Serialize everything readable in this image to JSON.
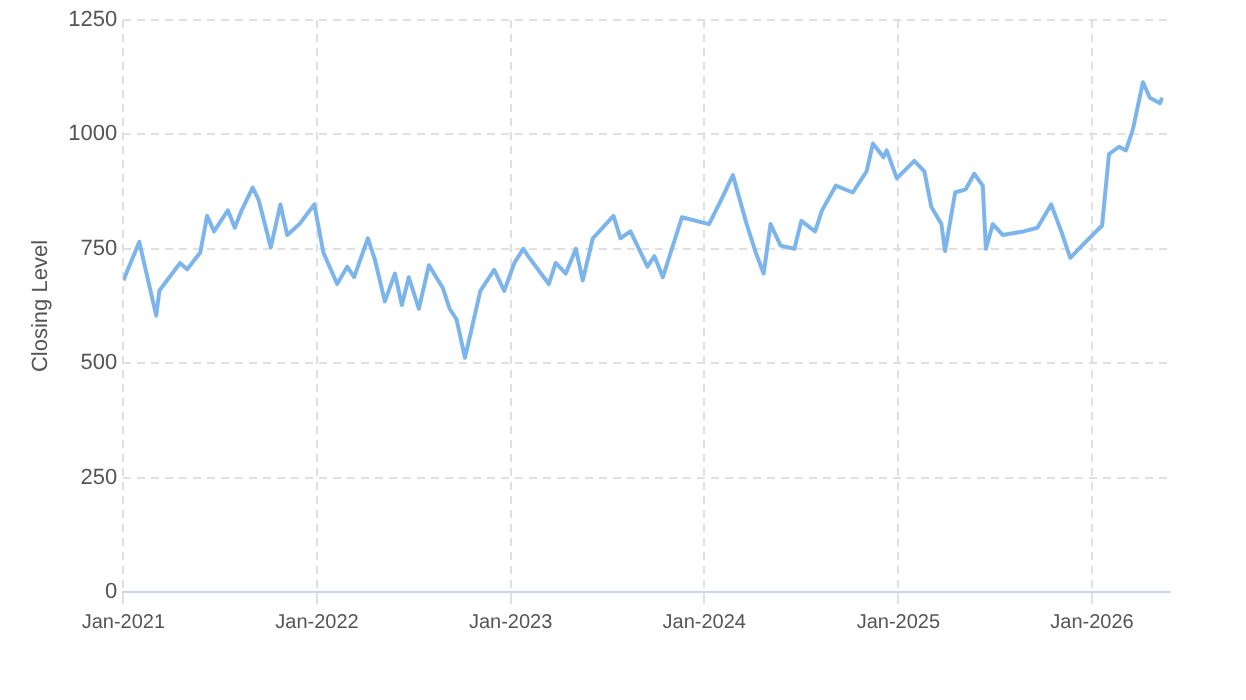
{
  "chart_data": {
    "type": "line",
    "ylabel": "Closing Level",
    "xlim": [
      "2021-01-01",
      "2026-05-28"
    ],
    "ylim": [
      0,
      1250
    ],
    "yticks": [
      0,
      250,
      500,
      750,
      1000,
      1250
    ],
    "xticks": [
      {
        "value": "2021-01-01",
        "label": "Jan-2021"
      },
      {
        "value": "2022-01-01",
        "label": "Jan-2022"
      },
      {
        "value": "2023-01-01",
        "label": "Jan-2023"
      },
      {
        "value": "2024-01-01",
        "label": "Jan-2024"
      },
      {
        "value": "2025-01-01",
        "label": "Jan-2025"
      },
      {
        "value": "2026-01-01",
        "label": "Jan-2026"
      }
    ],
    "grid": true,
    "legend": false,
    "marker": "none",
    "line_style": "solid",
    "x": [
      "2021-01-01",
      "2021-01-31",
      "2021-03-04",
      "2021-03-10",
      "2021-04-18",
      "2021-05-01",
      "2021-05-26",
      "2021-06-08",
      "2021-06-21",
      "2021-07-17",
      "2021-07-30",
      "2021-08-12",
      "2021-09-02",
      "2021-09-13",
      "2021-10-06",
      "2021-10-24",
      "2021-11-06",
      "2021-11-29",
      "2021-12-27",
      "2022-01-13",
      "2022-02-08",
      "2022-02-27",
      "2022-03-12",
      "2022-04-07",
      "2022-04-20",
      "2022-05-09",
      "2022-05-28",
      "2022-06-10",
      "2022-06-23",
      "2022-07-12",
      "2022-07-31",
      "2022-08-26",
      "2022-09-08",
      "2022-09-21",
      "2022-10-07",
      "2022-11-05",
      "2022-12-01",
      "2022-12-20",
      "2023-01-08",
      "2023-01-25",
      "2023-02-03",
      "2023-03-14",
      "2023-03-27",
      "2023-04-15",
      "2023-05-04",
      "2023-05-17",
      "2023-06-05",
      "2023-07-14",
      "2023-07-27",
      "2023-08-15",
      "2023-09-16",
      "2023-09-29",
      "2023-10-15",
      "2023-11-20",
      "2024-01-10",
      "2024-01-30",
      "2024-02-24",
      "2024-03-21",
      "2024-04-07",
      "2024-04-22",
      "2024-05-05",
      "2024-05-24",
      "2024-06-19",
      "2024-07-02",
      "2024-07-28",
      "2024-08-10",
      "2024-09-05",
      "2024-10-07",
      "2024-11-02",
      "2024-11-14",
      "2024-12-04",
      "2024-12-10",
      "2024-12-29",
      "2025-01-31",
      "2025-02-19",
      "2025-03-04",
      "2025-03-23",
      "2025-03-30",
      "2025-04-18",
      "2025-05-08",
      "2025-05-24",
      "2025-06-09",
      "2025-06-15",
      "2025-06-28",
      "2025-07-17",
      "2025-08-25",
      "2025-09-20",
      "2025-10-16",
      "2025-11-04",
      "2025-11-21",
      "2025-12-13",
      "2026-01-20",
      "2026-02-02",
      "2026-02-21",
      "2026-03-06",
      "2026-03-19",
      "2026-04-07",
      "2026-04-20",
      "2026-05-09",
      "2026-05-13"
    ],
    "series": [
      {
        "color": "#7cb5ec",
        "values": [
          681,
          765,
          604,
          659,
          719,
          705,
          742,
          822,
          788,
          834,
          796,
          834,
          884,
          857,
          753,
          847,
          780,
          804,
          847,
          742,
          673,
          711,
          688,
          773,
          727,
          635,
          696,
          627,
          688,
          619,
          714,
          665,
          619,
          596,
          512,
          658,
          704,
          658,
          719,
          750,
          734,
          673,
          719,
          696,
          750,
          681,
          773,
          822,
          773,
          788,
          711,
          734,
          688,
          819,
          804,
          850,
          911,
          804,
          742,
          696,
          804,
          757,
          750,
          811,
          788,
          834,
          888,
          873,
          919,
          980,
          950,
          965,
          904,
          942,
          919,
          842,
          804,
          745,
          873,
          880,
          914,
          888,
          750,
          804,
          780,
          788,
          796,
          847,
          788,
          730,
          757,
          801,
          957,
          973,
          965,
          1011,
          1114,
          1080,
          1068,
          1080
        ]
      }
    ]
  }
}
